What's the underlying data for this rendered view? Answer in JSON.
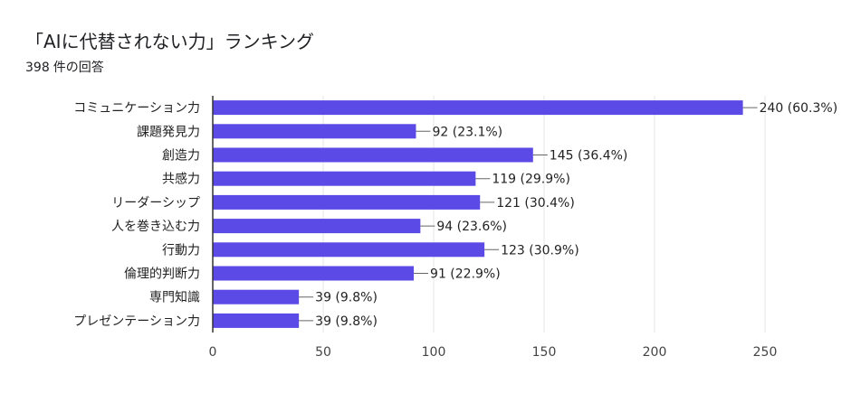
{
  "title": "「AIに代替されない力」ランキング",
  "response_count": "398",
  "response_suffix": "件の回答",
  "colors": {
    "bar": "#5b4ae6",
    "grid": "#e6e6e6",
    "axis": "#333333",
    "leader": "#666666"
  },
  "chart_data": {
    "type": "bar",
    "orientation": "horizontal",
    "categories": [
      "コミュニケーション力",
      "課題発見力",
      "創造力",
      "共感力",
      "リーダーシップ",
      "人を巻き込む力",
      "行動力",
      "倫理的判断力",
      "専門知識",
      "プレゼンテーション力"
    ],
    "values": [
      240,
      92,
      145,
      119,
      121,
      94,
      123,
      91,
      39,
      39
    ],
    "value_labels": [
      "240 (60.3%)",
      "92 (23.1%)",
      "145 (36.4%)",
      "119 (29.9%)",
      "121 (30.4%)",
      "94 (23.6%)",
      "123 (30.9%)",
      "91 (22.9%)",
      "39 (9.8%)",
      "39 (9.8%)"
    ],
    "xlim": [
      0,
      250
    ],
    "xticks": [
      "0",
      "50",
      "100",
      "150",
      "200",
      "250"
    ],
    "grid": true
  }
}
